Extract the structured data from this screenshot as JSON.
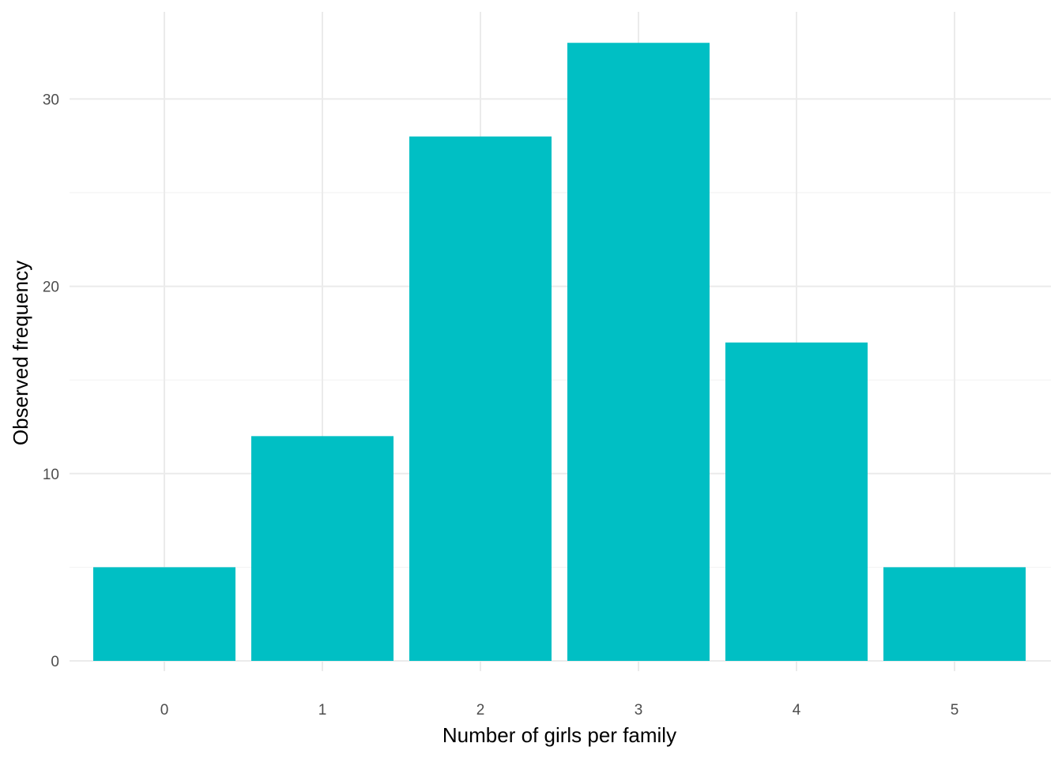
{
  "chart_data": {
    "type": "bar",
    "title": "",
    "xlabel": "Number of girls per family",
    "ylabel": "Observed frequency",
    "categories": [
      "0",
      "1",
      "2",
      "3",
      "4",
      "5"
    ],
    "values": [
      5,
      12,
      28,
      33,
      17,
      5
    ],
    "ylim": [
      0,
      33
    ],
    "y_ticks": [
      0,
      10,
      20,
      30
    ],
    "y_minor_ticks": [
      5,
      15,
      25
    ],
    "grid": true,
    "legend": "none",
    "bar_color": "#00BFC4"
  }
}
